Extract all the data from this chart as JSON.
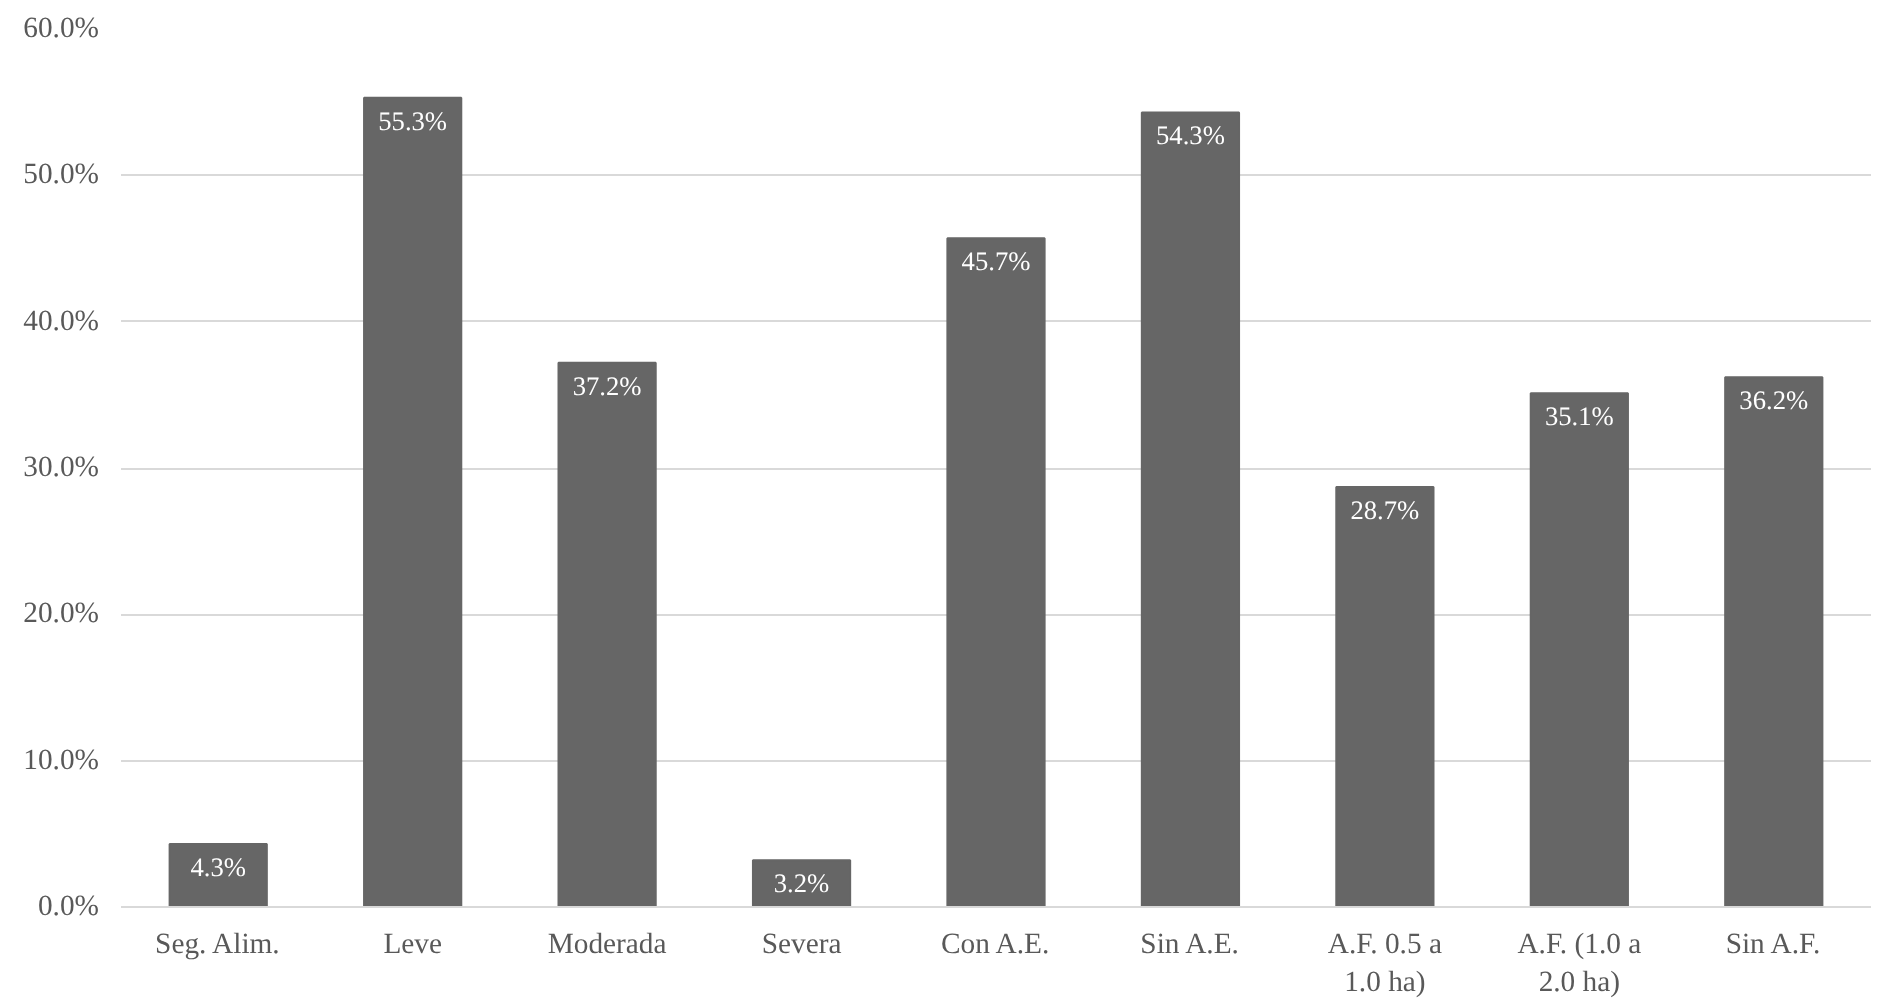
{
  "chart_data": {
    "type": "bar",
    "categories": [
      "Seg. Alim.",
      "Leve",
      "Moderada",
      "Severa",
      "Con A.E.",
      "Sin A.E.",
      "A.F. 0.5 a 1.0 ha)",
      "A.F. (1.0 a 2.0 ha)",
      "Sin A.F."
    ],
    "values": [
      4.3,
      55.3,
      37.2,
      3.2,
      45.7,
      54.3,
      28.7,
      35.1,
      36.2
    ],
    "value_labels": [
      "4.3%",
      "55.3%",
      "37.2%",
      "3.2%",
      "45.7%",
      "54.3%",
      "28.7%",
      "35.1%",
      "36.2%"
    ],
    "color": "#666666",
    "ylim": [
      0,
      60
    ],
    "yticks": [
      {
        "value": 0,
        "label": "0.0%"
      },
      {
        "value": 10,
        "label": "10.0%"
      },
      {
        "value": 20,
        "label": "20.0%"
      },
      {
        "value": 30,
        "label": "30.0%"
      },
      {
        "value": 40,
        "label": "40.0%"
      },
      {
        "value": 50,
        "label": "50.0%"
      },
      {
        "value": 60,
        "label": "60.0%"
      }
    ],
    "grid": "y"
  }
}
